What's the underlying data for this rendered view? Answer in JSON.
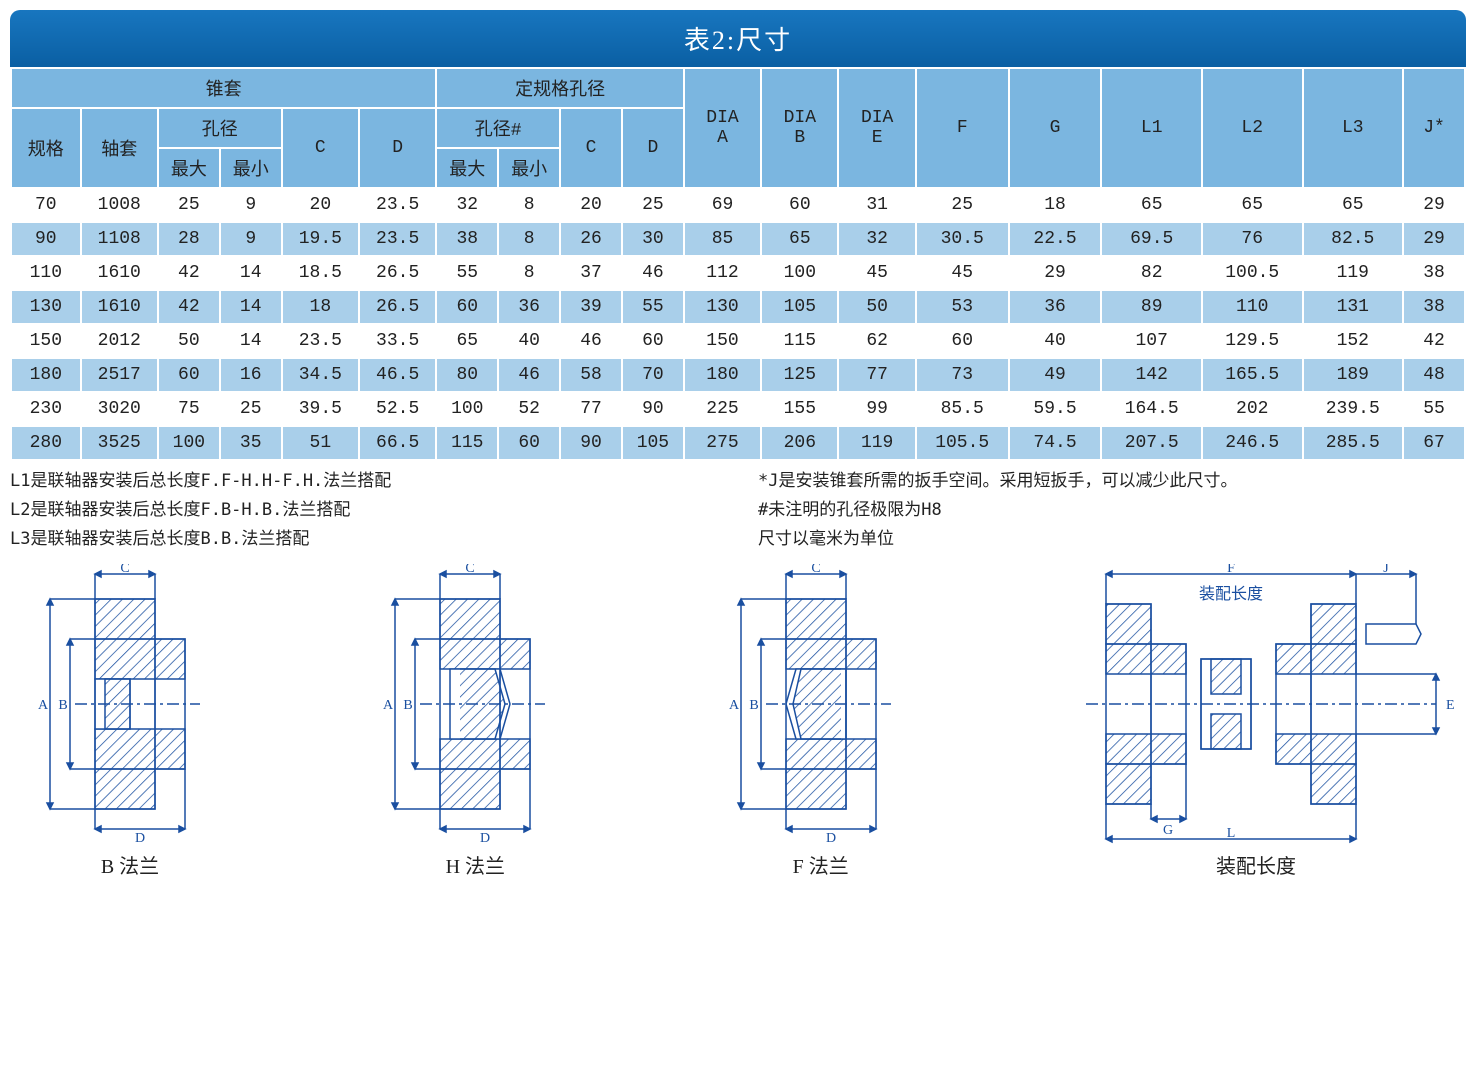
{
  "title": "表2:尺寸",
  "header": {
    "group1": "锥套",
    "group2": "定规格孔径",
    "spec": "规格",
    "bushing": "轴套",
    "bore": "孔径",
    "max": "最大",
    "min": "最小",
    "C": "C",
    "D": "D",
    "bore2": "孔径#",
    "DIA_A": "DIA\nA",
    "DIA_B": "DIA\nB",
    "DIA_E": "DIA\nE",
    "F": "F",
    "G": "G",
    "L1": "L1",
    "L2": "L2",
    "L3": "L3",
    "Jstar": "J*"
  },
  "rows": [
    [
      "70",
      "1008",
      "25",
      "9",
      "20",
      "23.5",
      "32",
      "8",
      "20",
      "25",
      "69",
      "60",
      "31",
      "25",
      "18",
      "65",
      "65",
      "65",
      "29"
    ],
    [
      "90",
      "1108",
      "28",
      "9",
      "19.5",
      "23.5",
      "38",
      "8",
      "26",
      "30",
      "85",
      "65",
      "32",
      "30.5",
      "22.5",
      "69.5",
      "76",
      "82.5",
      "29"
    ],
    [
      "110",
      "1610",
      "42",
      "14",
      "18.5",
      "26.5",
      "55",
      "8",
      "37",
      "46",
      "112",
      "100",
      "45",
      "45",
      "29",
      "82",
      "100.5",
      "119",
      "38"
    ],
    [
      "130",
      "1610",
      "42",
      "14",
      "18",
      "26.5",
      "60",
      "36",
      "39",
      "55",
      "130",
      "105",
      "50",
      "53",
      "36",
      "89",
      "110",
      "131",
      "38"
    ],
    [
      "150",
      "2012",
      "50",
      "14",
      "23.5",
      "33.5",
      "65",
      "40",
      "46",
      "60",
      "150",
      "115",
      "62",
      "60",
      "40",
      "107",
      "129.5",
      "152",
      "42"
    ],
    [
      "180",
      "2517",
      "60",
      "16",
      "34.5",
      "46.5",
      "80",
      "46",
      "58",
      "70",
      "180",
      "125",
      "77",
      "73",
      "49",
      "142",
      "165.5",
      "189",
      "48"
    ],
    [
      "230",
      "3020",
      "75",
      "25",
      "39.5",
      "52.5",
      "100",
      "52",
      "77",
      "90",
      "225",
      "155",
      "99",
      "85.5",
      "59.5",
      "164.5",
      "202",
      "239.5",
      "55"
    ],
    [
      "280",
      "3525",
      "100",
      "35",
      "51",
      "66.5",
      "115",
      "60",
      "90",
      "105",
      "275",
      "206",
      "119",
      "105.5",
      "74.5",
      "207.5",
      "246.5",
      "285.5",
      "67"
    ]
  ],
  "notes_left": [
    "L1是联轴器安装后总长度F.F-H.H-F.H.法兰搭配",
    "L2是联轴器安装后总长度F.B-H.B.法兰搭配",
    "L3是联轴器安装后总长度B.B.法兰搭配"
  ],
  "notes_right": [
    "*J是安装锥套所需的扳手空间。采用短扳手，可以减少此尺寸。",
    "#未注明的孔径极限为H8",
    "尺寸以毫米为单位"
  ],
  "diagram_labels": {
    "B": "B  法兰",
    "H": "H  法兰",
    "F": "F  法兰",
    "assembly": "装配长度",
    "assembly_inner": "装配长度"
  },
  "colors": {
    "header_bg": "#7bb6e0",
    "row_even_bg": "#a9cfea",
    "title_bg": "#0a5fa3",
    "diagram_stroke": "#1a4fa0",
    "hatch": "#1a4fa0"
  }
}
